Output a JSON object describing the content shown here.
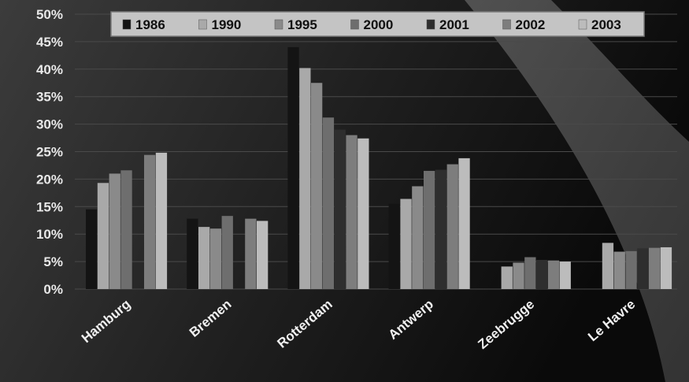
{
  "chart_data": {
    "type": "bar",
    "categories": [
      "Hamburg",
      "Bremen",
      "Rotterdam",
      "Antwerp",
      "Zeebrugge",
      "Le Havre"
    ],
    "series": [
      {
        "name": "1986",
        "values": [
          14.5,
          12.8,
          44.0,
          15.5,
          0,
          0
        ]
      },
      {
        "name": "1990",
        "values": [
          19.3,
          11.3,
          40.2,
          16.4,
          4.1,
          8.4
        ]
      },
      {
        "name": "1995",
        "values": [
          21.0,
          11.0,
          37.5,
          18.7,
          4.8,
          6.8
        ]
      },
      {
        "name": "2000",
        "values": [
          21.6,
          13.3,
          31.2,
          21.5,
          5.8,
          6.9
        ]
      },
      {
        "name": "2001",
        "values": [
          0,
          0,
          29.0,
          21.7,
          5.3,
          7.4
        ]
      },
      {
        "name": "2002",
        "values": [
          24.4,
          12.8,
          28.0,
          22.7,
          5.2,
          7.5
        ]
      },
      {
        "name": "2003",
        "values": [
          24.8,
          12.4,
          27.4,
          23.8,
          5.0,
          7.6
        ]
      }
    ],
    "series_colors": [
      "#141414",
      "#a9a9a9",
      "#8a8a8a",
      "#6e6e6e",
      "#2e2e2e",
      "#7d7d7d",
      "#bcbcbc"
    ],
    "yticks": [
      "0%",
      "5%",
      "10%",
      "15%",
      "20%",
      "25%",
      "30%",
      "35%",
      "40%",
      "45%",
      "50%"
    ],
    "ylim": [
      0,
      50
    ],
    "grid": true,
    "legend_position": "top"
  }
}
